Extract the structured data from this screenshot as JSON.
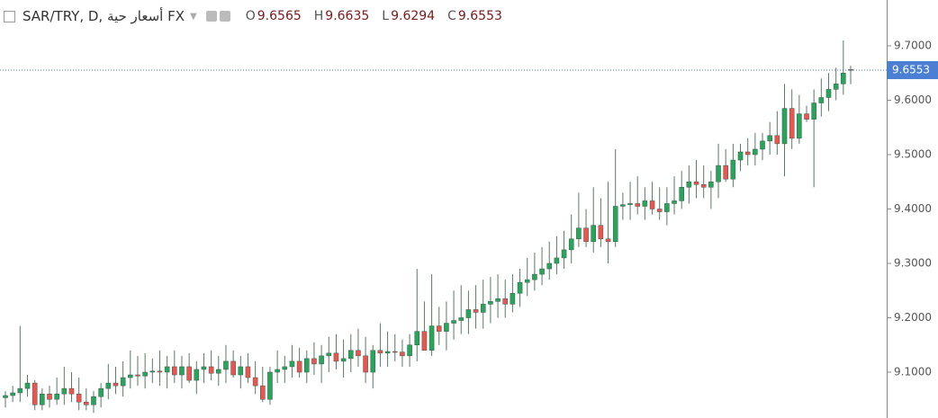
{
  "header": {
    "symbol": "SAR/TRY, D, أسعار حية FX",
    "ohlc": [
      {
        "label": "O",
        "value": 9.6565
      },
      {
        "label": "H",
        "value": 9.6635
      },
      {
        "label": "L",
        "value": 9.6294
      },
      {
        "label": "C",
        "value": 9.6553
      }
    ]
  },
  "chart_data": {
    "type": "candlestick",
    "up_color": "#26a65b",
    "down_color": "#ef5350",
    "wick_color": "#5a7a68",
    "ylim": [
      9.0157,
      9.7843
    ],
    "yticks": [
      {
        "value": 9.1,
        "label": "9.1000"
      },
      {
        "value": 9.2,
        "label": "9.2000"
      },
      {
        "value": 9.3,
        "label": "9.3000"
      },
      {
        "value": 9.4,
        "label": "9.4000"
      },
      {
        "value": 9.5,
        "label": "9.5000"
      },
      {
        "value": 9.6,
        "label": "9.6000"
      },
      {
        "value": 9.7,
        "label": "9.7000"
      }
    ],
    "last_price": 9.6553,
    "last_price_color": "#4a7fd4",
    "candles": [
      {
        "o": 9.053,
        "h": 9.065,
        "l": 9.035,
        "c": 9.057
      },
      {
        "o": 9.057,
        "h": 9.075,
        "l": 9.045,
        "c": 9.062
      },
      {
        "o": 9.062,
        "h": 9.185,
        "l": 9.045,
        "c": 9.07
      },
      {
        "o": 9.07,
        "h": 9.095,
        "l": 9.055,
        "c": 9.08
      },
      {
        "o": 9.08,
        "h": 9.085,
        "l": 9.03,
        "c": 9.04
      },
      {
        "o": 9.04,
        "h": 9.07,
        "l": 9.03,
        "c": 9.06
      },
      {
        "o": 9.06,
        "h": 9.075,
        "l": 9.035,
        "c": 9.05
      },
      {
        "o": 9.05,
        "h": 9.09,
        "l": 9.04,
        "c": 9.06
      },
      {
        "o": 9.06,
        "h": 9.11,
        "l": 9.04,
        "c": 9.07
      },
      {
        "o": 9.07,
        "h": 9.1,
        "l": 9.045,
        "c": 9.06
      },
      {
        "o": 9.06,
        "h": 9.09,
        "l": 9.03,
        "c": 9.045
      },
      {
        "o": 9.045,
        "h": 9.07,
        "l": 9.03,
        "c": 9.04
      },
      {
        "o": 9.04,
        "h": 9.065,
        "l": 9.025,
        "c": 9.055
      },
      {
        "o": 9.055,
        "h": 9.08,
        "l": 9.035,
        "c": 9.07
      },
      {
        "o": 9.07,
        "h": 9.115,
        "l": 9.05,
        "c": 9.08
      },
      {
        "o": 9.08,
        "h": 9.11,
        "l": 9.06,
        "c": 9.075
      },
      {
        "o": 9.075,
        "h": 9.12,
        "l": 9.055,
        "c": 9.09
      },
      {
        "o": 9.09,
        "h": 9.14,
        "l": 9.07,
        "c": 9.095
      },
      {
        "o": 9.095,
        "h": 9.13,
        "l": 9.075,
        "c": 9.093
      },
      {
        "o": 9.093,
        "h": 9.135,
        "l": 9.07,
        "c": 9.1
      },
      {
        "o": 9.1,
        "h": 9.125,
        "l": 9.08,
        "c": 9.102
      },
      {
        "o": 9.102,
        "h": 9.14,
        "l": 9.075,
        "c": 9.1
      },
      {
        "o": 9.1,
        "h": 9.13,
        "l": 9.07,
        "c": 9.11
      },
      {
        "o": 9.11,
        "h": 9.14,
        "l": 9.08,
        "c": 9.095
      },
      {
        "o": 9.095,
        "h": 9.13,
        "l": 9.07,
        "c": 9.11
      },
      {
        "o": 9.11,
        "h": 9.135,
        "l": 9.08,
        "c": 9.085
      },
      {
        "o": 9.085,
        "h": 9.12,
        "l": 9.06,
        "c": 9.105
      },
      {
        "o": 9.105,
        "h": 9.135,
        "l": 9.08,
        "c": 9.11
      },
      {
        "o": 9.11,
        "h": 9.14,
        "l": 9.085,
        "c": 9.098
      },
      {
        "o": 9.098,
        "h": 9.13,
        "l": 9.075,
        "c": 9.105
      },
      {
        "o": 9.105,
        "h": 9.15,
        "l": 9.08,
        "c": 9.12
      },
      {
        "o": 9.12,
        "h": 9.14,
        "l": 9.09,
        "c": 9.095
      },
      {
        "o": 9.095,
        "h": 9.13,
        "l": 9.07,
        "c": 9.11
      },
      {
        "o": 9.11,
        "h": 9.135,
        "l": 9.08,
        "c": 9.09
      },
      {
        "o": 9.09,
        "h": 9.12,
        "l": 9.06,
        "c": 9.075
      },
      {
        "o": 9.075,
        "h": 9.11,
        "l": 9.045,
        "c": 9.05
      },
      {
        "o": 9.05,
        "h": 9.11,
        "l": 9.04,
        "c": 9.1
      },
      {
        "o": 9.1,
        "h": 9.14,
        "l": 9.08,
        "c": 9.105
      },
      {
        "o": 9.105,
        "h": 9.13,
        "l": 9.08,
        "c": 9.11
      },
      {
        "o": 9.11,
        "h": 9.15,
        "l": 9.09,
        "c": 9.12
      },
      {
        "o": 9.12,
        "h": 9.145,
        "l": 9.09,
        "c": 9.1
      },
      {
        "o": 9.1,
        "h": 9.14,
        "l": 9.08,
        "c": 9.125
      },
      {
        "o": 9.125,
        "h": 9.155,
        "l": 9.095,
        "c": 9.115
      },
      {
        "o": 9.115,
        "h": 9.15,
        "l": 9.08,
        "c": 9.13
      },
      {
        "o": 9.13,
        "h": 9.165,
        "l": 9.1,
        "c": 9.135
      },
      {
        "o": 9.135,
        "h": 9.17,
        "l": 9.105,
        "c": 9.12
      },
      {
        "o": 9.12,
        "h": 9.16,
        "l": 9.09,
        "c": 9.125
      },
      {
        "o": 9.125,
        "h": 9.17,
        "l": 9.1,
        "c": 9.14
      },
      {
        "o": 9.14,
        "h": 9.18,
        "l": 9.11,
        "c": 9.13
      },
      {
        "o": 9.13,
        "h": 9.165,
        "l": 9.08,
        "c": 9.1
      },
      {
        "o": 9.1,
        "h": 9.15,
        "l": 9.07,
        "c": 9.14
      },
      {
        "o": 9.14,
        "h": 9.19,
        "l": 9.11,
        "c": 9.135
      },
      {
        "o": 9.135,
        "h": 9.175,
        "l": 9.11,
        "c": 9.138
      },
      {
        "o": 9.138,
        "h": 9.17,
        "l": 9.12,
        "c": 9.137
      },
      {
        "o": 9.137,
        "h": 9.16,
        "l": 9.11,
        "c": 9.13
      },
      {
        "o": 9.13,
        "h": 9.17,
        "l": 9.11,
        "c": 9.15
      },
      {
        "o": 9.15,
        "h": 9.29,
        "l": 9.12,
        "c": 9.175
      },
      {
        "o": 9.175,
        "h": 9.23,
        "l": 9.14,
        "c": 9.14
      },
      {
        "o": 9.14,
        "h": 9.28,
        "l": 9.13,
        "c": 9.185
      },
      {
        "o": 9.185,
        "h": 9.22,
        "l": 9.15,
        "c": 9.175
      },
      {
        "o": 9.175,
        "h": 9.23,
        "l": 9.14,
        "c": 9.19
      },
      {
        "o": 9.19,
        "h": 9.25,
        "l": 9.16,
        "c": 9.195
      },
      {
        "o": 9.195,
        "h": 9.26,
        "l": 9.17,
        "c": 9.2
      },
      {
        "o": 9.2,
        "h": 9.25,
        "l": 9.17,
        "c": 9.215
      },
      {
        "o": 9.215,
        "h": 9.26,
        "l": 9.18,
        "c": 9.21
      },
      {
        "o": 9.21,
        "h": 9.27,
        "l": 9.18,
        "c": 9.225
      },
      {
        "o": 9.225,
        "h": 9.275,
        "l": 9.19,
        "c": 9.23
      },
      {
        "o": 9.23,
        "h": 9.28,
        "l": 9.2,
        "c": 9.235
      },
      {
        "o": 9.235,
        "h": 9.27,
        "l": 9.2,
        "c": 9.225
      },
      {
        "o": 9.225,
        "h": 9.28,
        "l": 9.21,
        "c": 9.245
      },
      {
        "o": 9.245,
        "h": 9.29,
        "l": 9.22,
        "c": 9.265
      },
      {
        "o": 9.265,
        "h": 9.31,
        "l": 9.24,
        "c": 9.27
      },
      {
        "o": 9.27,
        "h": 9.32,
        "l": 9.25,
        "c": 9.28
      },
      {
        "o": 9.28,
        "h": 9.33,
        "l": 9.26,
        "c": 9.29
      },
      {
        "o": 9.29,
        "h": 9.34,
        "l": 9.27,
        "c": 9.3
      },
      {
        "o": 9.3,
        "h": 9.35,
        "l": 9.28,
        "c": 9.31
      },
      {
        "o": 9.31,
        "h": 9.36,
        "l": 9.29,
        "c": 9.325
      },
      {
        "o": 9.325,
        "h": 9.39,
        "l": 9.3,
        "c": 9.345
      },
      {
        "o": 9.345,
        "h": 9.43,
        "l": 9.33,
        "c": 9.365
      },
      {
        "o": 9.365,
        "h": 9.4,
        "l": 9.33,
        "c": 9.34
      },
      {
        "o": 9.34,
        "h": 9.44,
        "l": 9.32,
        "c": 9.37
      },
      {
        "o": 9.37,
        "h": 9.42,
        "l": 9.33,
        "c": 9.345
      },
      {
        "o": 9.345,
        "h": 9.45,
        "l": 9.3,
        "c": 9.34
      },
      {
        "o": 9.34,
        "h": 9.51,
        "l": 9.33,
        "c": 9.405
      },
      {
        "o": 9.405,
        "h": 9.43,
        "l": 9.38,
        "c": 9.408
      },
      {
        "o": 9.408,
        "h": 9.45,
        "l": 9.38,
        "c": 9.41
      },
      {
        "o": 9.41,
        "h": 9.46,
        "l": 9.39,
        "c": 9.405
      },
      {
        "o": 9.405,
        "h": 9.44,
        "l": 9.38,
        "c": 9.415
      },
      {
        "o": 9.415,
        "h": 9.45,
        "l": 9.39,
        "c": 9.4
      },
      {
        "o": 9.4,
        "h": 9.44,
        "l": 9.38,
        "c": 9.395
      },
      {
        "o": 9.395,
        "h": 9.44,
        "l": 9.37,
        "c": 9.41
      },
      {
        "o": 9.41,
        "h": 9.46,
        "l": 9.39,
        "c": 9.415
      },
      {
        "o": 9.415,
        "h": 9.47,
        "l": 9.4,
        "c": 9.44
      },
      {
        "o": 9.44,
        "h": 9.48,
        "l": 9.41,
        "c": 9.45
      },
      {
        "o": 9.45,
        "h": 9.49,
        "l": 9.42,
        "c": 9.445
      },
      {
        "o": 9.445,
        "h": 9.48,
        "l": 9.42,
        "c": 9.44
      },
      {
        "o": 9.44,
        "h": 9.47,
        "l": 9.4,
        "c": 9.45
      },
      {
        "o": 9.45,
        "h": 9.52,
        "l": 9.42,
        "c": 9.48
      },
      {
        "o": 9.48,
        "h": 9.51,
        "l": 9.45,
        "c": 9.455
      },
      {
        "o": 9.455,
        "h": 9.52,
        "l": 9.44,
        "c": 9.49
      },
      {
        "o": 9.49,
        "h": 9.52,
        "l": 9.47,
        "c": 9.505
      },
      {
        "o": 9.505,
        "h": 9.53,
        "l": 9.48,
        "c": 9.5
      },
      {
        "o": 9.5,
        "h": 9.54,
        "l": 9.48,
        "c": 9.51
      },
      {
        "o": 9.51,
        "h": 9.54,
        "l": 9.49,
        "c": 9.525
      },
      {
        "o": 9.525,
        "h": 9.56,
        "l": 9.5,
        "c": 9.535
      },
      {
        "o": 9.535,
        "h": 9.58,
        "l": 9.5,
        "c": 9.52
      },
      {
        "o": 9.52,
        "h": 9.63,
        "l": 9.46,
        "c": 9.585
      },
      {
        "o": 9.585,
        "h": 9.62,
        "l": 9.51,
        "c": 9.53
      },
      {
        "o": 9.53,
        "h": 9.61,
        "l": 9.52,
        "c": 9.575
      },
      {
        "o": 9.575,
        "h": 9.59,
        "l": 9.56,
        "c": 9.565
      },
      {
        "o": 9.565,
        "h": 9.62,
        "l": 9.44,
        "c": 9.595
      },
      {
        "o": 9.595,
        "h": 9.64,
        "l": 9.57,
        "c": 9.605
      },
      {
        "o": 9.605,
        "h": 9.65,
        "l": 9.58,
        "c": 9.62
      },
      {
        "o": 9.62,
        "h": 9.66,
        "l": 9.6,
        "c": 9.63
      },
      {
        "o": 9.63,
        "h": 9.71,
        "l": 9.61,
        "c": 9.65
      },
      {
        "o": 9.6565,
        "h": 9.6635,
        "l": 9.6294,
        "c": 9.6553
      }
    ]
  }
}
